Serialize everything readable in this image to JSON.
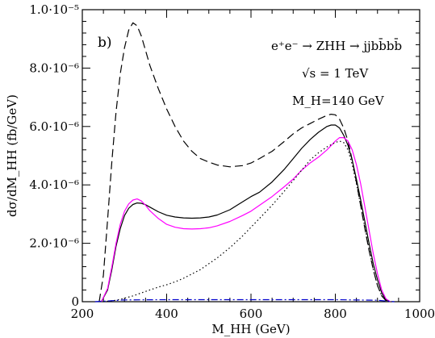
{
  "chart_data": {
    "type": "line",
    "panel_label": "b)",
    "annotations": [
      "e⁺e⁻ → ZHH → jjbb̄bb̄",
      "√s = 1 TeV",
      "M_H=140 GeV"
    ],
    "xlabel": "M_HH (GeV)",
    "ylabel": "dσ/dM_HH (fb/GeV)",
    "xlim": [
      200,
      1000
    ],
    "ylim": [
      0,
      1e-05
    ],
    "xticks": [
      200,
      400,
      600,
      800,
      1000
    ],
    "yticks": [
      0,
      2e-06,
      4e-06,
      6e-06,
      8e-06,
      1e-05
    ],
    "ytick_labels": [
      "0",
      "2.0·10⁻⁶",
      "4.0·10⁻⁶",
      "6.0·10⁻⁶",
      "8.0·10⁻⁶",
      "1.0·10⁻⁵"
    ],
    "grid": false,
    "series": [
      {
        "style": "dashed",
        "color": "#000000",
        "x": [
          240,
          250,
          260,
          270,
          280,
          290,
          300,
          310,
          320,
          330,
          340,
          350,
          360,
          380,
          400,
          420,
          440,
          460,
          480,
          500,
          520,
          550,
          580,
          600,
          620,
          650,
          680,
          700,
          720,
          740,
          760,
          780,
          790,
          800,
          810,
          820,
          830,
          840,
          850,
          860,
          870,
          880,
          890,
          900,
          910,
          920,
          930
        ],
        "y": [
          0,
          9e-07,
          2.8e-06,
          4.8e-06,
          6.5e-06,
          7.8e-06,
          8.7e-06,
          9.3e-06,
          9.55e-06,
          9.45e-06,
          9.1e-06,
          8.6e-06,
          8.1e-06,
          7.3e-06,
          6.6e-06,
          6e-06,
          5.5e-06,
          5.15e-06,
          4.9e-06,
          4.78e-06,
          4.68e-06,
          4.62e-06,
          4.66e-06,
          4.75e-06,
          4.9e-06,
          5.15e-06,
          5.5e-06,
          5.75e-06,
          5.95e-06,
          6.1e-06,
          6.25e-06,
          6.38e-06,
          6.42e-06,
          6.4e-06,
          6.25e-06,
          5.95e-06,
          5.5e-06,
          4.85e-06,
          4.1e-06,
          3.3e-06,
          2.5e-06,
          1.75e-06,
          1.1e-06,
          5.5e-07,
          2e-07,
          4e-08,
          0
        ]
      },
      {
        "style": "solid",
        "color": "#000000",
        "x": [
          245,
          260,
          270,
          280,
          290,
          300,
          310,
          320,
          330,
          340,
          350,
          360,
          380,
          400,
          420,
          440,
          460,
          480,
          500,
          520,
          550,
          580,
          600,
          620,
          650,
          680,
          700,
          720,
          740,
          760,
          780,
          790,
          800,
          810,
          820,
          830,
          840,
          850,
          860,
          870,
          880,
          890,
          900,
          910,
          920,
          930
        ],
        "y": [
          0,
          4e-07,
          1.1e-06,
          1.9e-06,
          2.5e-06,
          2.95e-06,
          3.2e-06,
          3.33e-06,
          3.38e-06,
          3.37e-06,
          3.32e-06,
          3.24e-06,
          3.08e-06,
          2.96e-06,
          2.9e-06,
          2.87e-06,
          2.86e-06,
          2.87e-06,
          2.9e-06,
          2.97e-06,
          3.15e-06,
          3.42e-06,
          3.6e-06,
          3.75e-06,
          4.1e-06,
          4.55e-06,
          4.9e-06,
          5.25e-06,
          5.55e-06,
          5.8e-06,
          6e-06,
          6.05e-06,
          6.05e-06,
          5.95e-06,
          5.7e-06,
          5.35e-06,
          4.85e-06,
          4.2e-06,
          3.5e-06,
          2.75e-06,
          2e-06,
          1.3e-06,
          7.5e-07,
          3e-07,
          6e-08,
          0
        ]
      },
      {
        "style": "solid",
        "color": "#ff00ff",
        "x": [
          245,
          260,
          270,
          280,
          290,
          300,
          310,
          320,
          330,
          340,
          350,
          360,
          380,
          400,
          420,
          440,
          460,
          480,
          500,
          520,
          550,
          580,
          600,
          620,
          650,
          680,
          700,
          720,
          740,
          760,
          780,
          800,
          810,
          820,
          830,
          840,
          850,
          860,
          870,
          880,
          890,
          900,
          910,
          920,
          930
        ],
        "y": [
          0,
          4.5e-07,
          1.2e-06,
          2e-06,
          2.65e-06,
          3.1e-06,
          3.35e-06,
          3.48e-06,
          3.52e-06,
          3.45e-06,
          3.3e-06,
          3.12e-06,
          2.85e-06,
          2.65e-06,
          2.55e-06,
          2.5e-06,
          2.49e-06,
          2.5e-06,
          2.53e-06,
          2.6e-06,
          2.75e-06,
          2.95e-06,
          3.1e-06,
          3.3e-06,
          3.6e-06,
          3.95e-06,
          4.2e-06,
          4.5e-06,
          4.75e-06,
          4.95e-06,
          5.2e-06,
          5.5e-06,
          5.62e-06,
          5.62e-06,
          5.5e-06,
          5.2e-06,
          4.7e-06,
          4.05e-06,
          3.25e-06,
          2.45e-06,
          1.65e-06,
          9.5e-07,
          4e-07,
          1e-07,
          0
        ]
      },
      {
        "style": "dotted",
        "color": "#000000",
        "x": [
          250,
          280,
          300,
          320,
          340,
          360,
          380,
          400,
          420,
          440,
          460,
          480,
          500,
          520,
          550,
          580,
          600,
          620,
          650,
          680,
          700,
          720,
          740,
          760,
          780,
          800,
          810,
          820,
          830,
          840,
          850,
          860,
          870,
          880,
          890,
          900,
          910,
          920,
          930
        ],
        "y": [
          0,
          5e-08,
          1.2e-07,
          2e-07,
          3e-07,
          4e-07,
          5e-07,
          5.8e-07,
          6.8e-07,
          8e-07,
          9.5e-07,
          1.1e-06,
          1.3e-06,
          1.5e-06,
          1.85e-06,
          2.25e-06,
          2.55e-06,
          2.85e-06,
          3.3e-06,
          3.8e-06,
          4.15e-06,
          4.5e-06,
          4.85e-06,
          5.1e-06,
          5.3e-06,
          5.45e-06,
          5.5e-06,
          5.45e-06,
          5.2e-06,
          4.7e-06,
          4.05e-06,
          3.3e-06,
          2.55e-06,
          1.8e-06,
          1.1e-06,
          5.5e-07,
          2e-07,
          5e-08,
          0
        ]
      },
      {
        "style": "dashdot",
        "color": "#0000cc",
        "x": [
          230,
          300,
          400,
          500,
          600,
          700,
          800,
          900,
          940
        ],
        "y": [
          0,
          6e-08,
          7e-08,
          7e-08,
          7e-08,
          7e-08,
          7e-08,
          5e-08,
          0
        ]
      }
    ]
  }
}
